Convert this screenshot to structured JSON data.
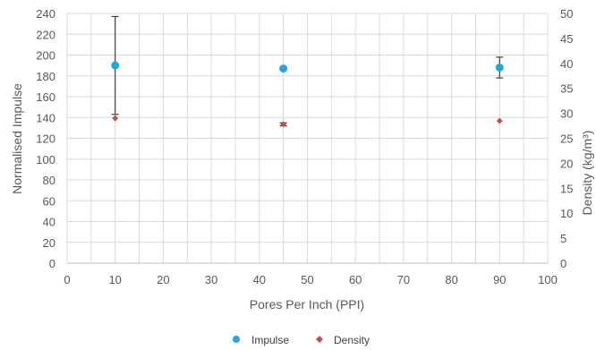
{
  "chart_data": {
    "type": "scatter",
    "xlabel": "Pores Per Inch (PPI)",
    "ylabel": "Normalised Impulse",
    "y2label": "Density (kg/m³)",
    "xlim": [
      0,
      100
    ],
    "ylim": [
      0,
      240
    ],
    "y2lim": [
      0,
      50
    ],
    "xticks": [
      "0",
      "10",
      "20",
      "30",
      "40",
      "50",
      "60",
      "70",
      "80",
      "90",
      "100"
    ],
    "yticks": [
      "0",
      "20",
      "40",
      "60",
      "80",
      "100",
      "120",
      "140",
      "160",
      "180",
      "200",
      "220",
      "240"
    ],
    "y2ticks": [
      "0",
      "5",
      "10",
      "15",
      "20",
      "25",
      "30",
      "35",
      "40",
      "45",
      "50"
    ],
    "grid": true,
    "legend_position": "bottom",
    "series": [
      {
        "name": "Impulse",
        "axis": "left",
        "color": "#1FA8E0",
        "marker": "circle",
        "points": [
          {
            "x": 10,
            "y": 190,
            "err_low": 143,
            "err_high": 237
          },
          {
            "x": 45,
            "y": 187,
            "err_low": 187,
            "err_high": 187
          },
          {
            "x": 90,
            "y": 188,
            "err_low": 178,
            "err_high": 198
          }
        ]
      },
      {
        "name": "Density",
        "axis": "right",
        "color": "#C0504D",
        "marker": "diamond",
        "points": [
          {
            "x": 10,
            "y": 29.0,
            "err_low": 29.0,
            "err_high": 29.0
          },
          {
            "x": 45,
            "y": 27.8,
            "err_low": 27.5,
            "err_high": 28.1
          },
          {
            "x": 90,
            "y": 28.5,
            "err_low": 28.5,
            "err_high": 28.5
          }
        ]
      }
    ]
  }
}
